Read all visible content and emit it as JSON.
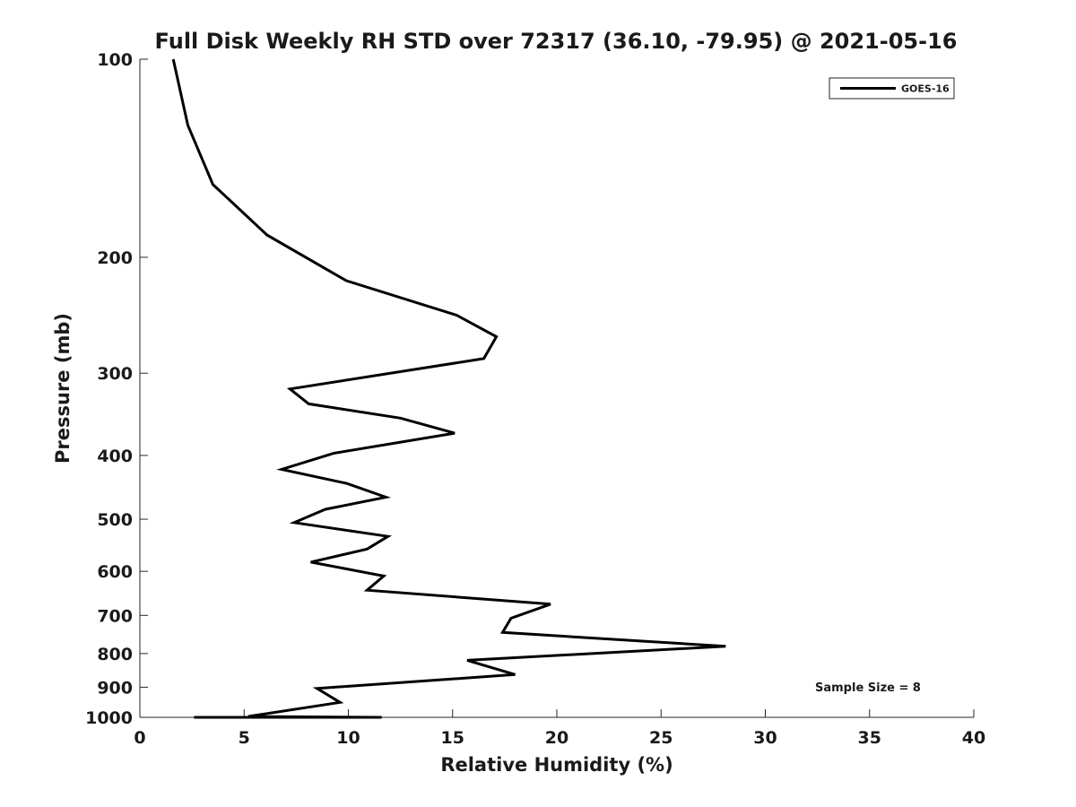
{
  "chart_data": {
    "type": "line",
    "title": "Full Disk Weekly RH STD over 72317 (36.10, -79.95) @ 2021-05-16",
    "xlabel": "Relative Humidity (%)",
    "ylabel": "Pressure (mb)",
    "xlim": [
      0,
      40
    ],
    "ylim": [
      1000,
      100
    ],
    "y_scale": "log",
    "y_reversed": true,
    "grid": false,
    "legend_position": "top-right",
    "x_ticks": [
      "0",
      "5",
      "10",
      "15",
      "20",
      "25",
      "30",
      "35",
      "40"
    ],
    "y_ticks": [
      "100",
      "200",
      "300",
      "400",
      "500",
      "600",
      "700",
      "800",
      "900",
      "1000"
    ],
    "series": [
      {
        "name": "GOES-16",
        "color": "#000000",
        "points": [
          [
            1.6,
            100
          ],
          [
            2.3,
            126
          ],
          [
            3.5,
            155
          ],
          [
            6.1,
            185
          ],
          [
            9.9,
            217
          ],
          [
            15.2,
            245
          ],
          [
            17.1,
            264
          ],
          [
            16.5,
            285
          ],
          [
            7.2,
            317
          ],
          [
            8.1,
            334
          ],
          [
            12.5,
            351
          ],
          [
            15.1,
            370
          ],
          [
            9.3,
            397
          ],
          [
            6.8,
            420
          ],
          [
            9.9,
            441
          ],
          [
            11.8,
            463
          ],
          [
            8.9,
            483
          ],
          [
            7.4,
            506
          ],
          [
            11.9,
            531
          ],
          [
            10.9,
            555
          ],
          [
            8.2,
            581
          ],
          [
            11.7,
            610
          ],
          [
            10.9,
            641
          ],
          [
            19.7,
            673
          ],
          [
            17.8,
            707
          ],
          [
            17.4,
            743
          ],
          [
            28.1,
            780
          ],
          [
            15.7,
            819
          ],
          [
            18.0,
            861
          ],
          [
            8.5,
            904
          ],
          [
            9.6,
            949
          ],
          [
            5.2,
            997
          ],
          [
            11.6,
            1000
          ],
          [
            4.0,
            1000
          ],
          [
            4.3,
            1000
          ],
          [
            5.5,
            1000
          ],
          [
            7.7,
            1000
          ],
          [
            4.8,
            1000
          ],
          [
            3.5,
            1000
          ],
          [
            2.6,
            1000
          ],
          [
            4.9,
            1000
          ]
        ]
      }
    ],
    "annotations": [
      "Sample Size = 8"
    ]
  }
}
